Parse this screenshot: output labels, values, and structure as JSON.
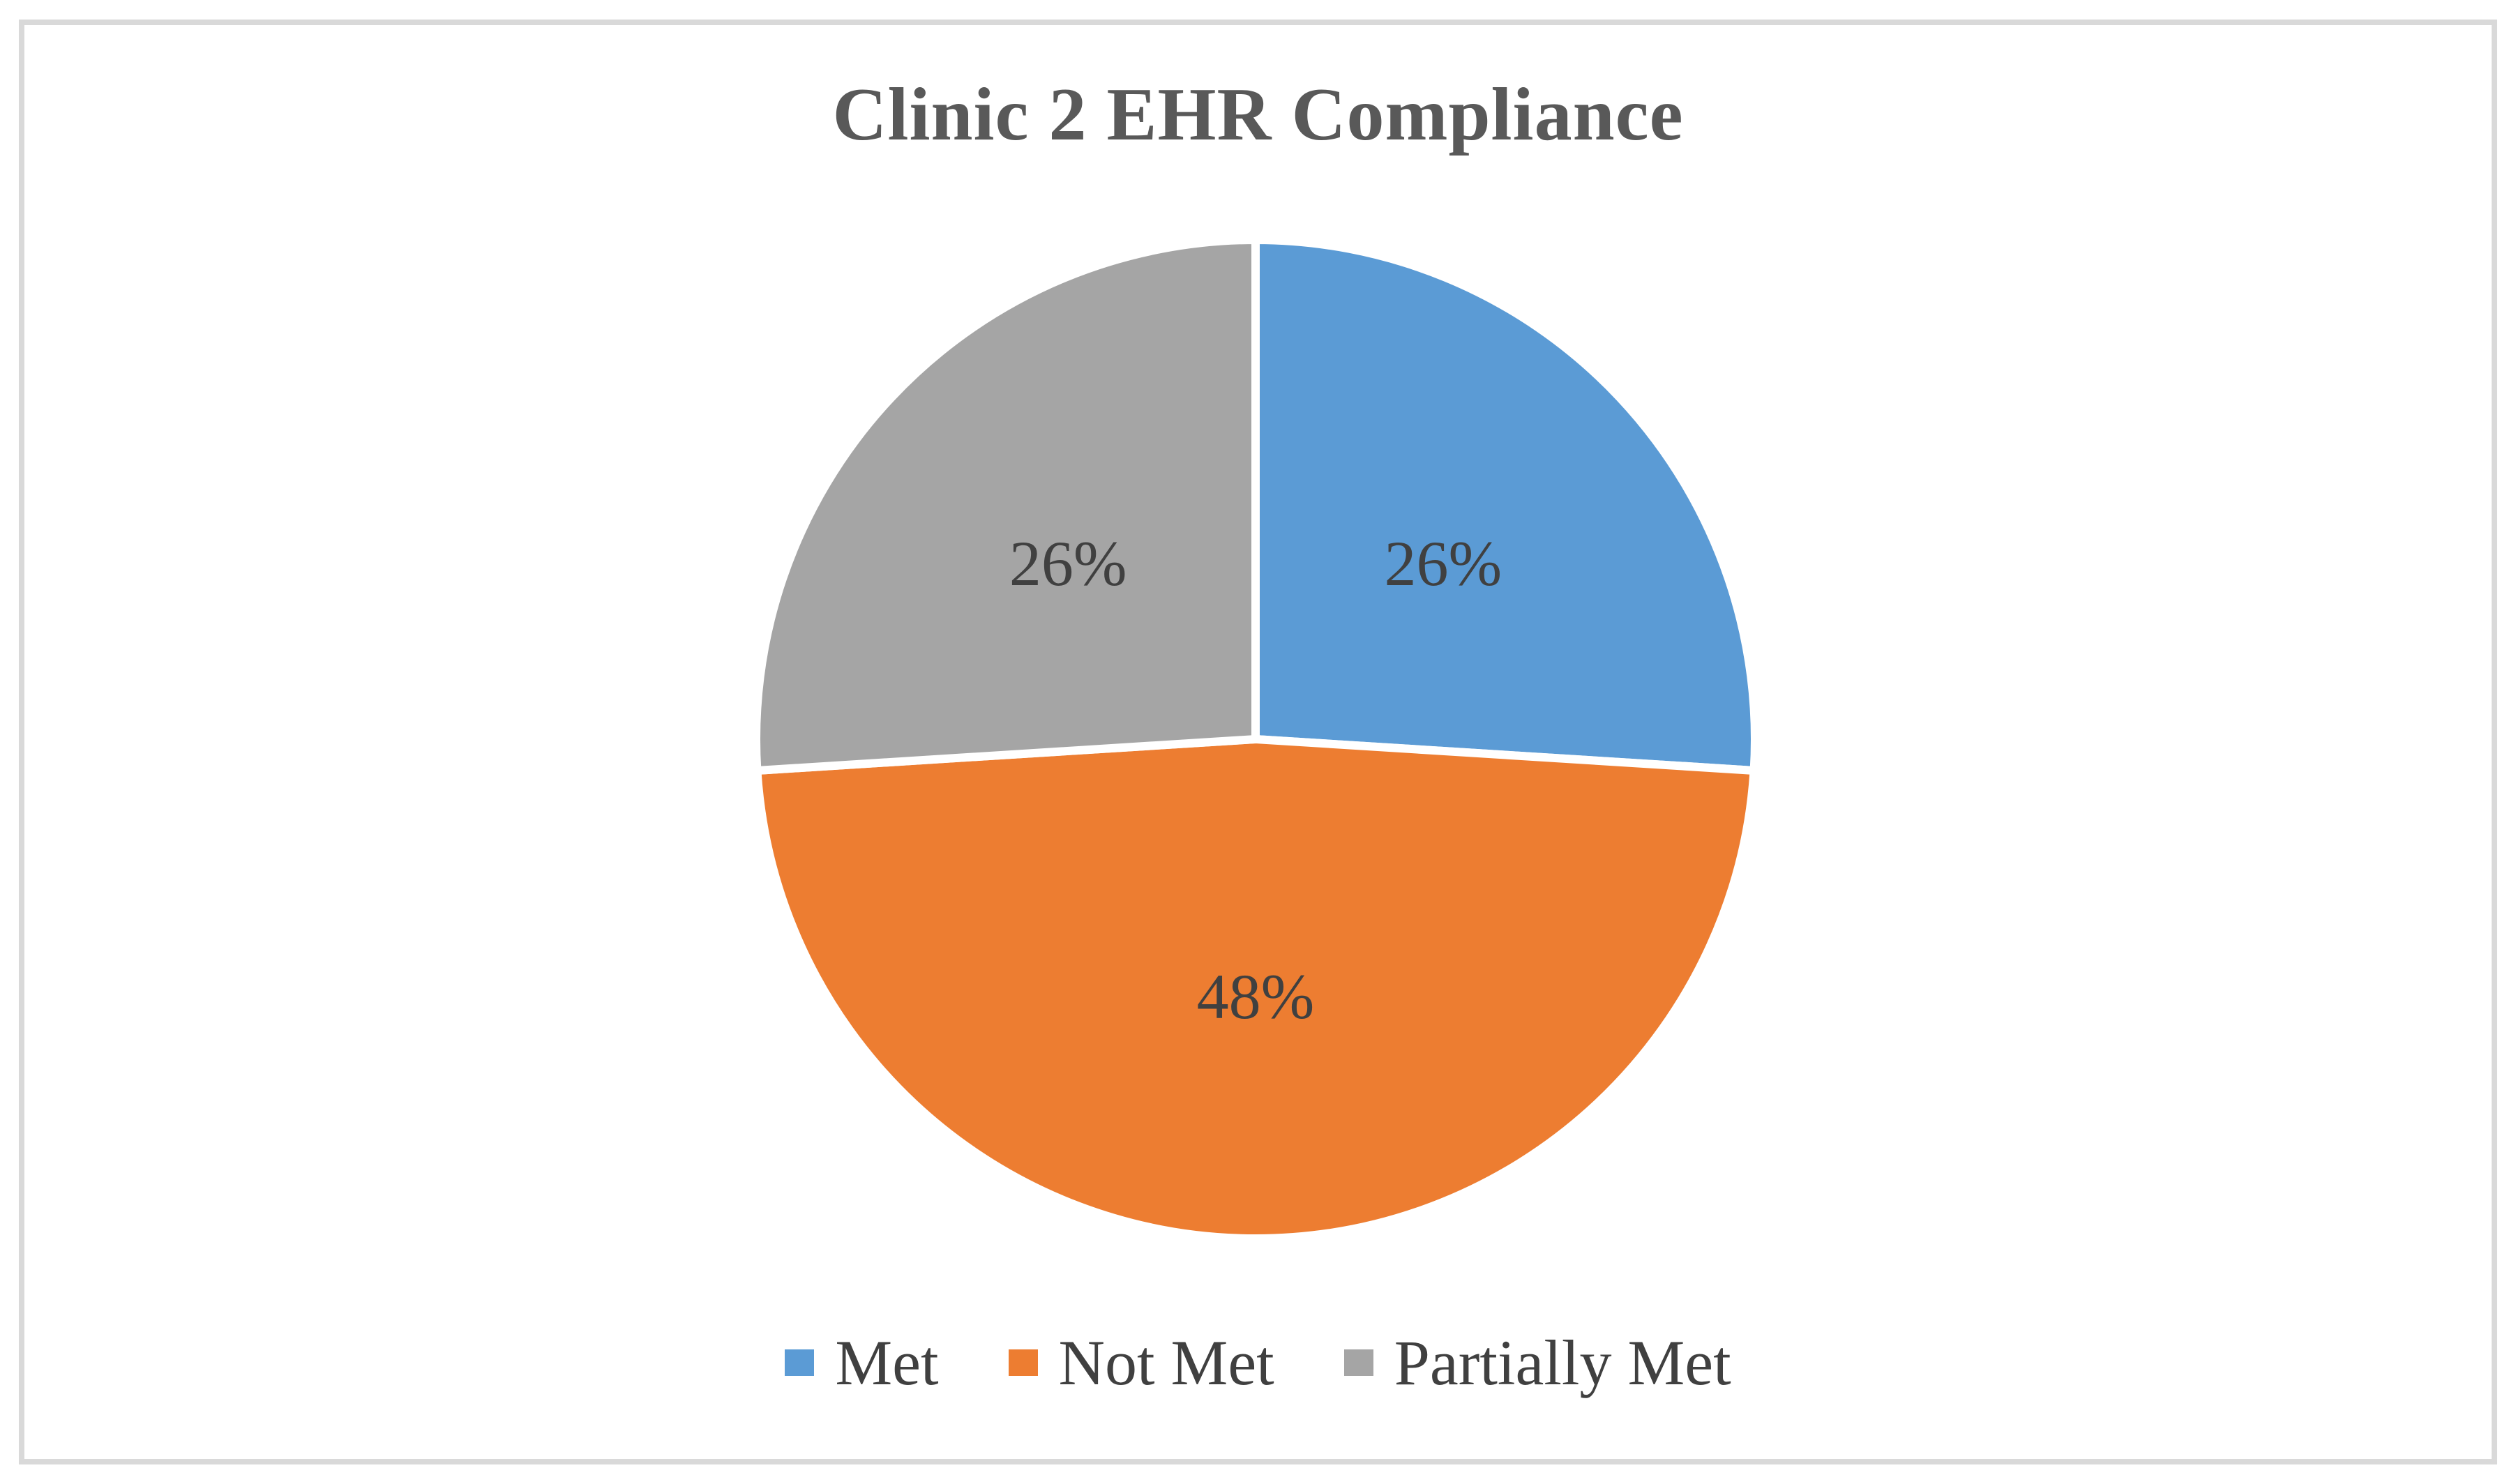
{
  "chart_data": {
    "type": "pie",
    "title": "Clinic 2 EHR Compliance",
    "start_angle_deg": 0,
    "direction": "clockwise",
    "legend_position": "bottom",
    "data_label_position": "inside",
    "slices": [
      {
        "label": "Met",
        "value": 26,
        "display": "26%",
        "color": "#5B9BD5"
      },
      {
        "label": "Not Met",
        "value": 48,
        "display": "48%",
        "color": "#ED7D31"
      },
      {
        "label": "Partially Met",
        "value": 26,
        "display": "26%",
        "color": "#A5A5A5"
      }
    ]
  },
  "styles": {
    "title_color": "#595959",
    "data_label_color": "#404040",
    "legend_text_color": "#404040",
    "frame_border_color": "#D9D9D9",
    "background_color": "#FFFFFF",
    "slice_separator_color": "#FFFFFF"
  }
}
